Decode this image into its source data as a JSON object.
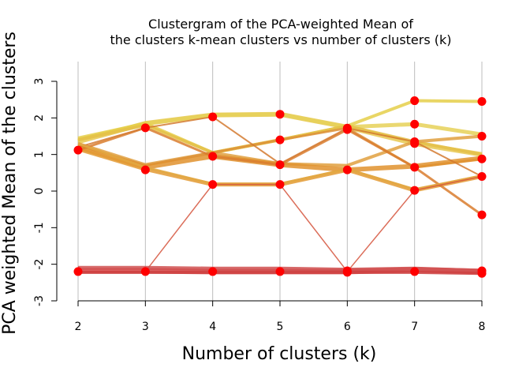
{
  "chart_data": {
    "type": "line",
    "title_line1": "Clustergram of the PCA-weighted Mean of",
    "title_line2": "the clusters k-mean clusters vs number of clusters (k)",
    "xlabel": "Number of clusters (k)",
    "ylabel": "PCA weighted Mean of the clusters",
    "x_ticks": [
      2,
      3,
      4,
      5,
      6,
      7,
      8
    ],
    "y_ticks": [
      -3,
      -2,
      -1,
      0,
      1,
      2,
      3
    ],
    "xlim": [
      2,
      8
    ],
    "ylim": [
      -3,
      3
    ],
    "grid": "vertical",
    "centers": {
      "2": [
        1.12,
        -2.2
      ],
      "3": [
        1.73,
        0.58,
        -2.2
      ],
      "4": [
        2.03,
        0.95,
        0.18,
        -2.2
      ],
      "5": [
        2.1,
        1.4,
        0.72,
        0.18,
        -2.2
      ],
      "6": [
        1.72,
        1.68,
        0.58,
        -2.18,
        -2.22
      ],
      "7": [
        2.47,
        1.83,
        1.35,
        1.3,
        0.65,
        0.02,
        -2.2
      ],
      "8": [
        2.45,
        1.5,
        0.88,
        0.4,
        -0.65,
        -2.18,
        -2.25
      ]
    },
    "bundles": [
      {
        "path": [
          1.35,
          1.85,
          2.08,
          2.1,
          1.75,
          1.3,
          1.0
        ],
        "color": "#e8c850",
        "width": 6
      },
      {
        "path": [
          1.4,
          1.85,
          2.08,
          2.1,
          1.75,
          1.83,
          1.55
        ],
        "color": "#e6d158",
        "width": 5
      },
      {
        "path": [
          1.45,
          1.85,
          1.05,
          1.4,
          1.78,
          2.47,
          2.45
        ],
        "color": "#e5cf4a",
        "width": 4
      },
      {
        "path": [
          1.4,
          1.8,
          1.05,
          1.4,
          1.78,
          1.35,
          1.0
        ],
        "color": "#e4c048",
        "width": 4
      },
      {
        "path": [
          1.3,
          0.72,
          1.05,
          0.75,
          0.7,
          1.35,
          1.5
        ],
        "color": "#e0a040",
        "width": 4
      },
      {
        "path": [
          1.25,
          0.7,
          1.05,
          1.4,
          1.72,
          0.65,
          0.88
        ],
        "color": "#dd9038",
        "width": 3
      },
      {
        "path": [
          1.2,
          0.65,
          0.95,
          0.72,
          0.58,
          0.68,
          0.9
        ],
        "color": "#e0922e",
        "width": 6
      },
      {
        "path": [
          1.15,
          0.6,
          0.18,
          0.18,
          0.58,
          0.02,
          0.4
        ],
        "color": "#e39a32",
        "width": 5
      },
      {
        "path": [
          1.12,
          1.73,
          0.95,
          0.72,
          1.68,
          0.65,
          -0.65
        ],
        "color": "#d97d2e",
        "width": 3
      },
      {
        "path": [
          1.2,
          1.73,
          2.03,
          0.75,
          1.72,
          1.35,
          0.4
        ],
        "color": "#d47a30",
        "width": 2
      },
      {
        "path": [
          1.3,
          0.65,
          0.2,
          0.2,
          0.6,
          0.05,
          0.42
        ],
        "color": "#e2a842",
        "width": 3
      },
      {
        "path": [
          -2.2,
          -2.2,
          0.18,
          0.18,
          -2.2,
          0.02,
          0.4
        ],
        "color": "#d5533c",
        "width": 1.5
      },
      {
        "path": [
          -2.18,
          -2.18,
          -2.2,
          -2.2,
          -2.2,
          -2.15,
          -2.2
        ],
        "color": "#d84848",
        "width": 7
      },
      {
        "path": [
          -2.1,
          -2.1,
          -2.12,
          -2.12,
          -2.15,
          -2.12,
          -2.18
        ],
        "color": "#d05050",
        "width": 5
      },
      {
        "path": [
          -2.22,
          -2.22,
          -2.22,
          -2.22,
          -2.22,
          -2.22,
          -2.25
        ],
        "color": "#cc4040",
        "width": 4
      }
    ],
    "point_color": "#ff0000"
  }
}
